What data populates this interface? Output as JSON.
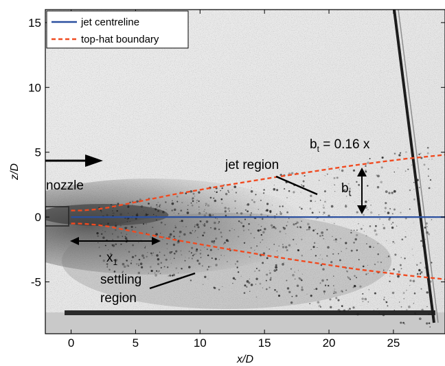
{
  "chart_data": {
    "type": "line",
    "title": "",
    "xlabel": "x/D",
    "ylabel": "z/D",
    "xlim": [
      -2,
      29
    ],
    "ylim": [
      -9,
      16
    ],
    "xticks": [
      0,
      5,
      10,
      15,
      20,
      25
    ],
    "yticks": [
      15,
      10,
      5,
      0,
      -5
    ],
    "grid": false,
    "legend_position": "top-left",
    "series": [
      {
        "name": "jet centreline",
        "style": "solid",
        "color": "#2a4f9f",
        "x": [
          0,
          29
        ],
        "y": [
          0,
          0
        ]
      },
      {
        "name": "top-hat boundary",
        "style": "dashed",
        "color": "#f04a20",
        "x": [
          0,
          0.5,
          1,
          2,
          3,
          4,
          5,
          6,
          7,
          8,
          10,
          12,
          14,
          16,
          18,
          20,
          22,
          24,
          26,
          28,
          29
        ],
        "y": [
          0.5,
          0.5,
          0.52,
          0.6,
          0.75,
          0.95,
          1.15,
          1.35,
          1.55,
          1.75,
          2.1,
          2.45,
          2.78,
          3.1,
          3.4,
          3.7,
          4.0,
          4.25,
          4.5,
          4.7,
          4.8
        ]
      },
      {
        "name": "top-hat boundary (lower)",
        "style": "dashed",
        "color": "#f04a20",
        "x": [
          0,
          0.5,
          1,
          2,
          3,
          4,
          5,
          6,
          7,
          8,
          10,
          12,
          14,
          16,
          18,
          20,
          22,
          24,
          26,
          28,
          29
        ],
        "y": [
          -0.5,
          -0.5,
          -0.52,
          -0.6,
          -0.75,
          -0.95,
          -1.15,
          -1.35,
          -1.55,
          -1.75,
          -2.1,
          -2.45,
          -2.78,
          -3.1,
          -3.4,
          -3.7,
          -4.0,
          -4.25,
          -4.5,
          -4.7,
          -4.8
        ]
      }
    ],
    "annotations": {
      "equation_main": "b",
      "equation_sub": "t",
      "equation_rest": " = 0.16 x",
      "jet_region": "jet region",
      "nozzle": "nozzle",
      "bt_main": "b",
      "bt_sub": "t",
      "x1_main": "x",
      "x1_sub": "1",
      "settling_line1": "settling",
      "settling_line2": "region"
    },
    "legend": [
      {
        "label": "jet centreline",
        "style": "solid",
        "color": "#2a4f9f"
      },
      {
        "label": "top-hat boundary",
        "style": "dashed",
        "color": "#f04a20"
      }
    ]
  }
}
